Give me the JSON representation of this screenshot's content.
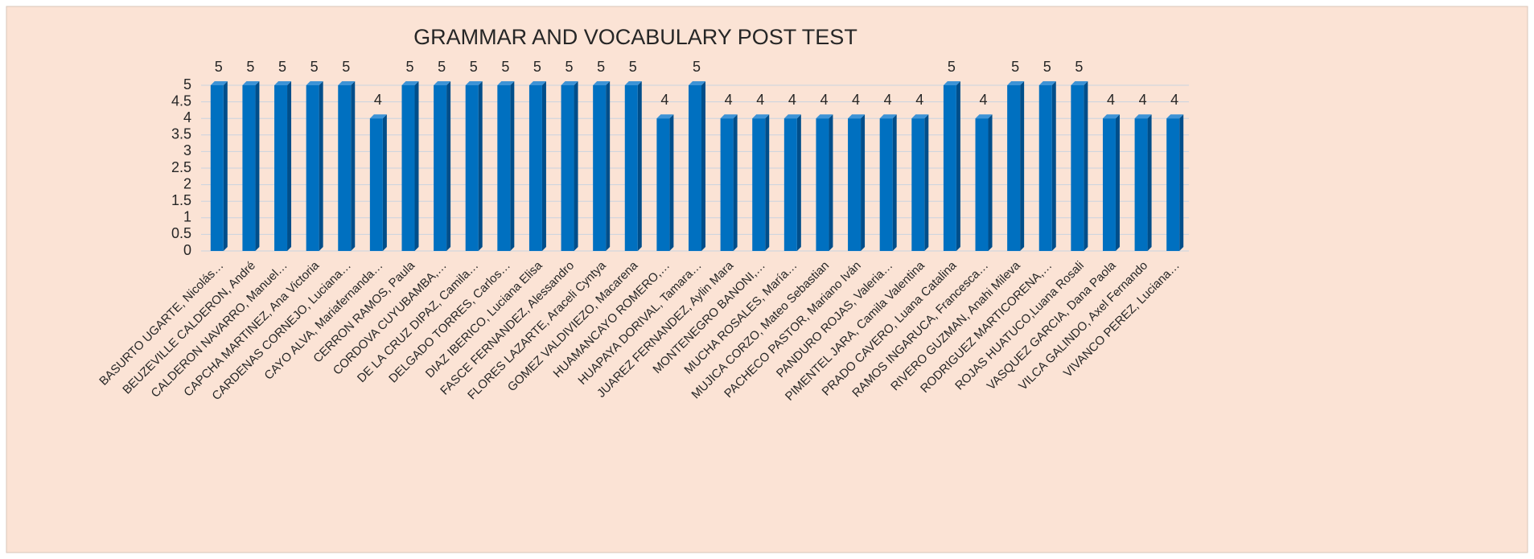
{
  "chart_data": {
    "type": "bar",
    "title": "GRAMMAR AND VOCABULARY POST TEST",
    "categories": [
      "BASURTO UGARTE, Nicolás…",
      "BEUZEVILLE CALDERON, André",
      "CALDERON NAVARRO, Manuel…",
      "CAPCHA MARTINEZ, Ana Victoria",
      "CARDENAS CORNEJO, Luciana…",
      "CAYO ALVA, Mariafernanda…",
      "CERRON RAMOS, Paula",
      "CORDOVA CUYUBAMBA,…",
      "DE LA CRUZ DIPAZ, Camila…",
      "DELGADO TORRES, Carlos…",
      "DIAZ IBERICO, Luciana Elisa",
      "FASCE FERNANDEZ, Alessandro",
      "FLORES LAZARTE, Araceli Cyntya",
      "GOMEZ VALDIVIEZO, Macarena",
      "HUAMANCAYO ROMERO,…",
      "HUAPAYA DORIVAL, Tamara…",
      "JUAREZ FERNANDEZ, Aylin Mara",
      "MONTENEGRO BANONI,…",
      "MUCHA ROSALES, María…",
      "MUJICA CORZO, Mateo Sebastian",
      "PACHECO PASTOR, Mariano Iván",
      "PANDURO ROJAS, Valeria…",
      "PIMENTEL JARA, Camila Valentina",
      "PRADO CAVERO, Luana Catalina",
      "RAMOS INGARUCA, Francesca…",
      "RIVERO GUZMAN, Anahi Mileva",
      "RODRIGUEZ MARTICORENA,…",
      "ROJAS HUATUCO,Luana Rosali",
      "VASQUEZ GARCIA, Dana Paola",
      "VILCA GALINDO, Axel Fernando",
      "VIVANCO PEREZ, Luciana…"
    ],
    "values": [
      5,
      5,
      5,
      5,
      5,
      4,
      5,
      5,
      5,
      5,
      5,
      5,
      5,
      5,
      4,
      5,
      4,
      4,
      4,
      4,
      4,
      4,
      4,
      5,
      4,
      5,
      5,
      5,
      4,
      4,
      4
    ],
    "color": "#0070c0",
    "ylim": [
      0,
      5
    ],
    "yticks": [
      0,
      0.5,
      1,
      1.5,
      2,
      2.5,
      3,
      3.5,
      4,
      4.5,
      5
    ],
    "grid": true
  }
}
